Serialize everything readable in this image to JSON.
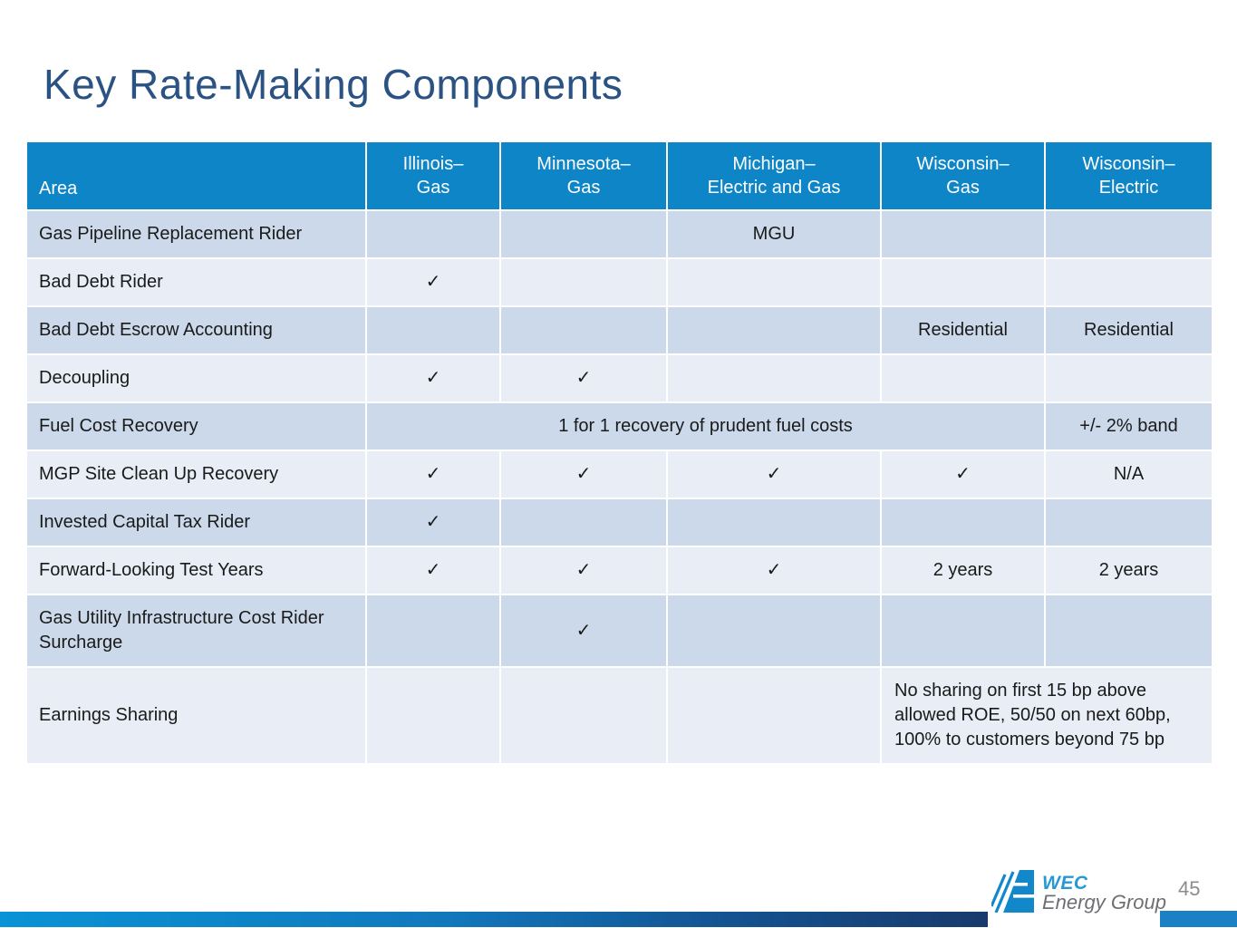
{
  "slide": {
    "title": "Key Rate-Making Components",
    "page_number": "45"
  },
  "logo": {
    "line1": "WEC",
    "line2": "Energy Group",
    "mark": "wec-stripes-square"
  },
  "colors": {
    "header_bg": "#0e85c7",
    "row_dark": "#ccd9ea",
    "row_light": "#e8edf6",
    "title": "#2a5283",
    "body_text": "#1a1a1a",
    "bar_start": "#0a93d6",
    "bar_end": "#183a6b",
    "accent_bar": "#1b80c4",
    "logo_blue": "#2798d4",
    "logo_gray": "#6d6f72",
    "page_num": "#8c8c8c"
  },
  "table": {
    "columns": [
      "Area",
      "Illinois–\nGas",
      "Minnesota–\nGas",
      "Michigan–\nElectric and Gas",
      "Wisconsin–\nGas",
      "Wisconsin–\nElectric"
    ],
    "check_glyph": "✓",
    "rows": [
      {
        "label": "Gas Pipeline Replacement Rider",
        "cells": [
          {
            "text": ""
          },
          {
            "text": ""
          },
          {
            "text": "MGU"
          },
          {
            "text": ""
          },
          {
            "text": ""
          }
        ]
      },
      {
        "label": "Bad Debt Rider",
        "cells": [
          {
            "text": "✓"
          },
          {
            "text": ""
          },
          {
            "text": ""
          },
          {
            "text": ""
          },
          {
            "text": ""
          }
        ]
      },
      {
        "label": "Bad Debt Escrow Accounting",
        "cells": [
          {
            "text": ""
          },
          {
            "text": ""
          },
          {
            "text": ""
          },
          {
            "text": "Residential"
          },
          {
            "text": "Residential"
          }
        ]
      },
      {
        "label": "Decoupling",
        "cells": [
          {
            "text": "✓"
          },
          {
            "text": "✓"
          },
          {
            "text": ""
          },
          {
            "text": ""
          },
          {
            "text": ""
          }
        ]
      },
      {
        "label": "Fuel Cost Recovery",
        "cells": [
          {
            "text": "1 for 1 recovery of prudent fuel costs",
            "span": 4
          },
          {
            "text": "+/- 2% band"
          }
        ]
      },
      {
        "label": "MGP Site Clean Up Recovery",
        "cells": [
          {
            "text": "✓"
          },
          {
            "text": "✓"
          },
          {
            "text": "✓"
          },
          {
            "text": "✓"
          },
          {
            "text": "N/A"
          }
        ]
      },
      {
        "label": "Invested Capital Tax Rider",
        "cells": [
          {
            "text": "✓"
          },
          {
            "text": ""
          },
          {
            "text": ""
          },
          {
            "text": ""
          },
          {
            "text": ""
          }
        ]
      },
      {
        "label": "Forward-Looking Test Years",
        "cells": [
          {
            "text": "✓"
          },
          {
            "text": "✓"
          },
          {
            "text": "✓"
          },
          {
            "text": "2 years"
          },
          {
            "text": "2 years"
          }
        ]
      },
      {
        "label": "Gas Utility Infrastructure Cost Rider Surcharge",
        "cells": [
          {
            "text": ""
          },
          {
            "text": "✓"
          },
          {
            "text": ""
          },
          {
            "text": ""
          },
          {
            "text": ""
          }
        ]
      },
      {
        "label": "Earnings Sharing",
        "cells": [
          {
            "text": ""
          },
          {
            "text": ""
          },
          {
            "text": ""
          },
          {
            "text": "No sharing on first 15 bp above allowed ROE, 50/50 on next 60bp, 100% to customers beyond 75 bp",
            "span": 2,
            "align": "left"
          }
        ]
      }
    ]
  }
}
